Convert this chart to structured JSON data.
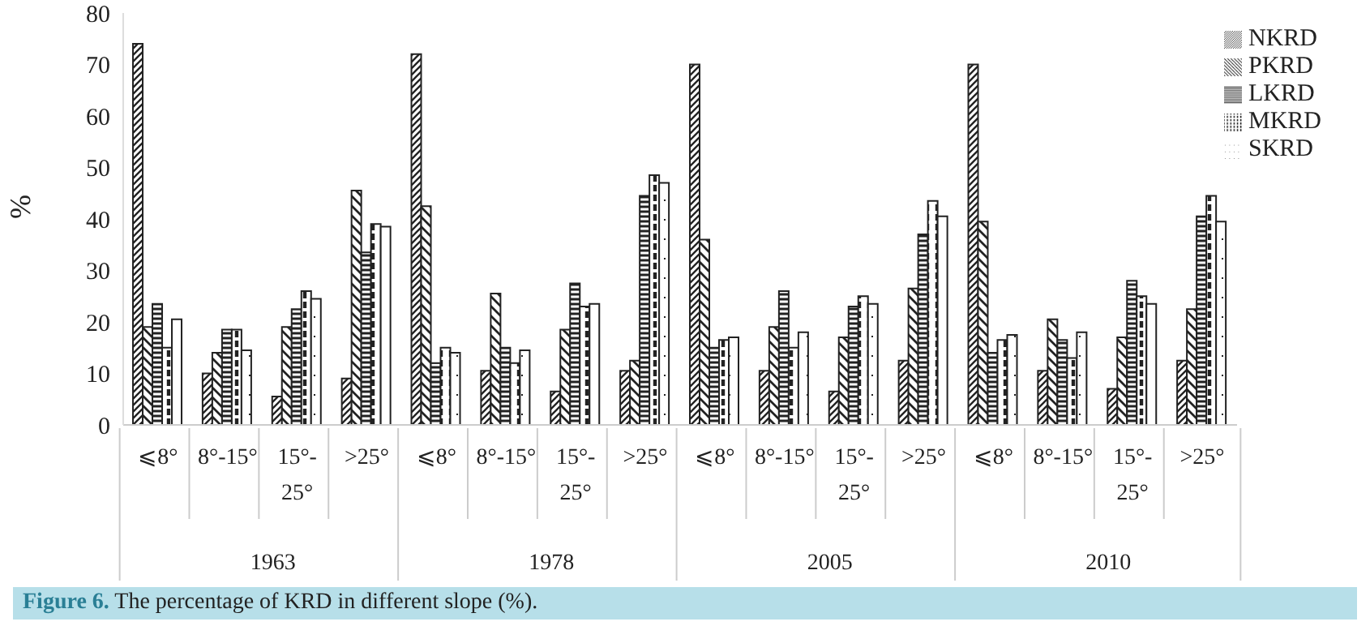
{
  "chart_data": {
    "type": "bar",
    "title": "Figure 6. The percentage of KRD in different slope (%).",
    "ylabel": "%",
    "categories": [
      "⩽8°",
      "8°-15°",
      "15°-25°",
      ">25°",
      "⩽8°",
      "8°-15°",
      "15°-25°",
      ">25°",
      "⩽8°",
      "8°-15°",
      "15°-25°",
      ">25°",
      "⩽8°",
      "8°-15°",
      "15°-25°",
      ">25°"
    ],
    "annotations": [
      "1963",
      "1978",
      "2005",
      "2010"
    ],
    "series": [
      {
        "name": "NKRD",
        "color": "#222222",
        "values": [
          74,
          10,
          5.5,
          9,
          72,
          10.5,
          6.5,
          10.5,
          70,
          10.5,
          6.5,
          12.5,
          70,
          10.5,
          7,
          12.5
        ]
      },
      {
        "name": "PKRD",
        "color": "#222222",
        "values": [
          19,
          14,
          19,
          45.5,
          42.5,
          25.5,
          18.5,
          12.5,
          36,
          19,
          17,
          26.5,
          39.5,
          20.5,
          17,
          22.5
        ]
      },
      {
        "name": "LKRD",
        "color": "#222222",
        "values": [
          23.5,
          18.5,
          22.5,
          33.5,
          12,
          15,
          27.5,
          44.5,
          15,
          26,
          23,
          37,
          14,
          16.5,
          28,
          40.5
        ]
      },
      {
        "name": "MKRD",
        "color": "#222222",
        "values": [
          15,
          18.5,
          26,
          39,
          15,
          12,
          23,
          48.5,
          16.5,
          15,
          25,
          43.5,
          16.5,
          13,
          25,
          44.5
        ]
      },
      {
        "name": "SKRD",
        "color": "#222222",
        "values": [
          20.5,
          14.5,
          24.5,
          38.5,
          14,
          14.5,
          23.5,
          47,
          17,
          18,
          23.5,
          40.5,
          17.5,
          18,
          23.5,
          39.5
        ]
      }
    ],
    "ylim": [
      0,
      80
    ],
    "yticks": [
      0,
      10,
      20,
      30,
      40,
      50,
      60,
      70,
      80
    ],
    "legend": "top right"
  }
}
